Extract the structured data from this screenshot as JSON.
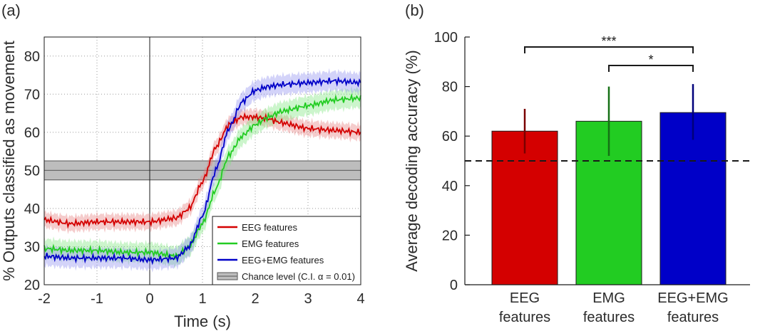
{
  "panels": [
    "(a)",
    "(b)"
  ],
  "colors": {
    "eeg": "#d40000",
    "emg": "#22cc22",
    "both": "#0000c8",
    "chance": "#808080"
  },
  "chart_data": [
    {
      "type": "line",
      "xlabel": "Time (s)",
      "ylabel": "% Outputs classified as movement",
      "xlim": [
        -2,
        4
      ],
      "ylim": [
        20,
        85
      ],
      "xticks": [
        "-2",
        "-1",
        "0",
        "1",
        "2",
        "3",
        "4"
      ],
      "yticks": [
        "20",
        "30",
        "40",
        "50",
        "60",
        "70",
        "80"
      ],
      "grid": true,
      "legend_position": "bottom-right",
      "chance": {
        "label": "Chance level (C.I. α = 0.01)",
        "value": 50,
        "ci": [
          47.5,
          52.5
        ]
      },
      "x": [
        -2,
        -1.5,
        -1,
        -0.5,
        0,
        0.5,
        0.75,
        1,
        1.25,
        1.5,
        1.75,
        2,
        2.25,
        2.5,
        3,
        3.5,
        4
      ],
      "series": [
        {
          "name": "EEG features",
          "values": [
            37,
            36,
            36.5,
            36.5,
            36.5,
            37.5,
            40,
            47,
            56,
            62,
            64,
            64,
            63.5,
            62.5,
            61,
            60.5,
            60
          ],
          "band": 2
        },
        {
          "name": "EMG features",
          "values": [
            29.5,
            29,
            29,
            28.5,
            28.5,
            27.5,
            30,
            36,
            45,
            54,
            59,
            62,
            64,
            65.5,
            67,
            68.5,
            69
          ],
          "band": 2.5
        },
        {
          "name": "EEG+EMG features",
          "values": [
            27.5,
            27,
            27,
            27,
            26.5,
            27,
            30,
            38,
            50,
            61,
            68,
            71,
            72,
            72.5,
            73,
            73.5,
            73
          ],
          "band": 2.5
        }
      ]
    },
    {
      "type": "bar",
      "ylabel": "Average decoding accuracy (%)",
      "ylim": [
        0,
        100
      ],
      "yticks": [
        "0",
        "20",
        "40",
        "60",
        "80",
        "100"
      ],
      "grid": false,
      "categories": [
        {
          "line1": "EEG",
          "line2": "features"
        },
        {
          "line1": "EMG",
          "line2": "features"
        },
        {
          "line1": "EEG+EMG",
          "line2": "features"
        }
      ],
      "values": [
        62,
        66,
        69.5
      ],
      "error_low": [
        53,
        52,
        58.5
      ],
      "error_high": [
        71,
        80,
        81
      ],
      "reference_line": 50,
      "significance": [
        {
          "from": 0,
          "to": 2,
          "label": "***"
        },
        {
          "from": 1,
          "to": 2,
          "label": "*"
        }
      ]
    }
  ]
}
